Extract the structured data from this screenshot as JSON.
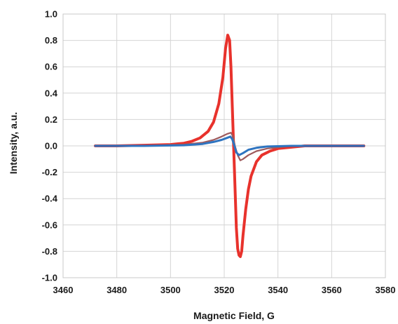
{
  "chart_data": {
    "type": "line",
    "xlabel": "Magnetic Field, G",
    "ylabel": "Intensity, a.u.",
    "xlim": [
      3460,
      3580
    ],
    "ylim": [
      -1.0,
      1.0
    ],
    "x_ticks": [
      "3460",
      "3480",
      "3500",
      "3520",
      "3540",
      "3560",
      "3580"
    ],
    "y_ticks": [
      "1.0",
      "0.8",
      "0.6",
      "0.4",
      "0.2",
      "0.0",
      "-0.2",
      "-0.4",
      "-0.6",
      "-0.8",
      "-1.0"
    ],
    "grid": true,
    "series": [
      {
        "color": "#e8322c",
        "x": [
          3472,
          3480,
          3490,
          3500,
          3505,
          3508,
          3511,
          3514,
          3516,
          3518,
          3519.5,
          3520.5,
          3521.3,
          3522,
          3522.5,
          3523,
          3523.5,
          3524,
          3524.5,
          3525,
          3525.5,
          3526,
          3526.5,
          3527,
          3528,
          3529,
          3530,
          3532,
          3534,
          3537,
          3540,
          3545,
          3550,
          3555,
          3560,
          3565,
          3572
        ],
        "y": [
          0.0,
          0.0,
          0.005,
          0.01,
          0.02,
          0.035,
          0.06,
          0.11,
          0.18,
          0.32,
          0.52,
          0.74,
          0.84,
          0.8,
          0.6,
          0.3,
          0.0,
          -0.3,
          -0.62,
          -0.78,
          -0.83,
          -0.84,
          -0.8,
          -0.68,
          -0.48,
          -0.33,
          -0.23,
          -0.12,
          -0.07,
          -0.04,
          -0.02,
          -0.01,
          0.0,
          0.0,
          0.0,
          0.0,
          0.0
        ]
      },
      {
        "color": "#9e5a5c",
        "x": [
          3472,
          3490,
          3505,
          3512,
          3516,
          3519,
          3521,
          3522.5,
          3523.3,
          3524,
          3525,
          3526,
          3527,
          3529,
          3532,
          3536,
          3545,
          3560,
          3572
        ],
        "y": [
          0.0,
          0.0,
          0.01,
          0.025,
          0.045,
          0.07,
          0.09,
          0.1,
          0.07,
          0.0,
          -0.07,
          -0.11,
          -0.1,
          -0.07,
          -0.04,
          -0.02,
          0.0,
          0.0,
          0.0
        ]
      },
      {
        "color": "#2e74c0",
        "x": [
          3472,
          3490,
          3505,
          3512,
          3516,
          3519,
          3521,
          3522.3,
          3523,
          3523.8,
          3524.5,
          3525.5,
          3527,
          3529,
          3532,
          3536,
          3545,
          3560,
          3572
        ],
        "y": [
          0.0,
          0.0,
          0.005,
          0.015,
          0.03,
          0.045,
          0.06,
          0.07,
          0.05,
          0.0,
          -0.05,
          -0.07,
          -0.055,
          -0.03,
          -0.015,
          -0.005,
          0.0,
          0.0,
          0.0
        ]
      }
    ]
  }
}
